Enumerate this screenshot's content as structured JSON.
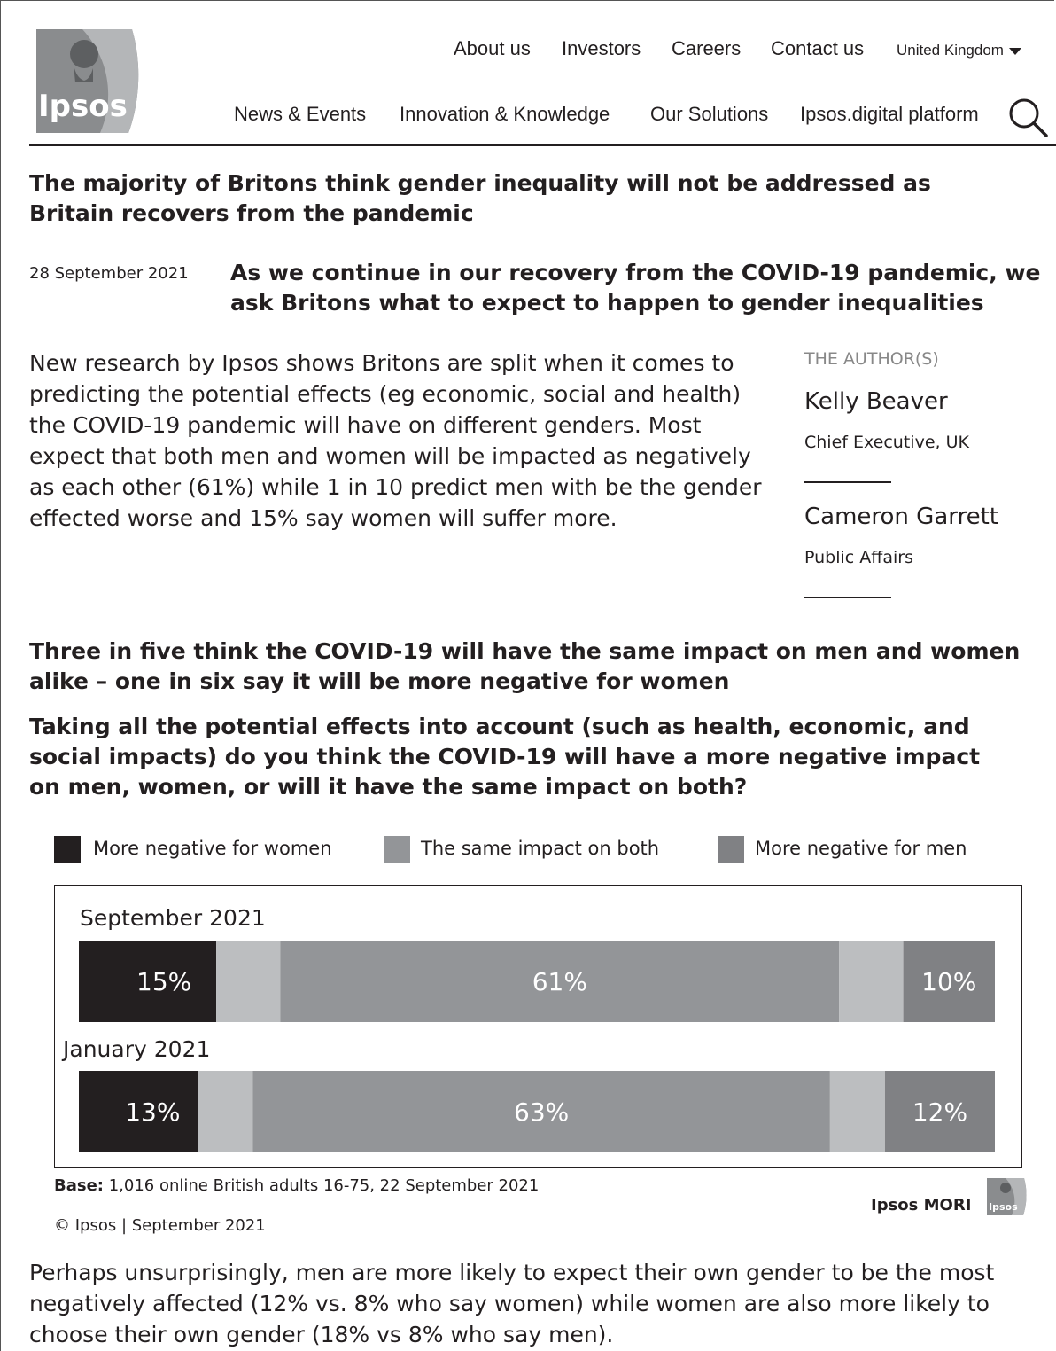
{
  "brand": {
    "logo_text": "Ipsos"
  },
  "topnav": [
    {
      "label": "About us"
    },
    {
      "label": "Investors"
    },
    {
      "label": "Careers"
    },
    {
      "label": "Contact us"
    }
  ],
  "country": "United Kingdom",
  "mainnav": [
    {
      "label": "News & Events"
    },
    {
      "label": "Innovation & Knowledge"
    },
    {
      "label": "Our Solutions"
    },
    {
      "label": "Ipsos.digital platform"
    }
  ],
  "article": {
    "title": "The majority of Britons think gender inequality will not be addressed as Britain recovers from the pandemic",
    "date": "28 September 2021",
    "subtitle": "As we continue in our recovery from the COVID-19 pandemic, we ask Britons what to expect to happen to gender inequalities",
    "intro": "New research by Ipsos shows Britons are split when it comes to predicting the potential effects (eg economic, social and health) the COVID-19 pandemic will have on different genders. Most expect that both men and women will be impacted as negatively as each other (61%) while 1 in 10 predict men with be the gender effected worse and 15% say women will suffer more.",
    "authors_heading": "THE AUTHOR(S)",
    "authors": [
      {
        "name": "Kelly Beaver",
        "role": "Chief Executive, UK"
      },
      {
        "name": "Cameron Garrett",
        "role": "Public Affairs"
      }
    ],
    "chart_heading": "Three in five think the COVID-19 will have the same impact on men and women alike – one in six say it will be more negative for women",
    "question": "Taking all the potential effects into account (such as health, economic, and social impacts) do you think the COVID-19 will have a more negative impact on men, women, or will it have the same impact on both?",
    "base_label": "Base:",
    "base_text": " 1,016 online British adults 16-75, 22 September 2021",
    "copyright": "© Ipsos | September 2021",
    "footer_brand": "Ipsos MORI",
    "conclusion": "Perhaps unsurprisingly, men are more likely to expect their own gender to be the most negatively affected (12% vs. 8% who say women) while women are also more likely to choose their own gender (18% vs 8% who say men)."
  },
  "colors": {
    "women": "#231f20",
    "same": "#939598",
    "men": "#808184",
    "gap": "#bcbec0"
  },
  "chart_data": {
    "type": "bar",
    "orientation": "horizontal",
    "stacked": true,
    "categories": [
      "September 2021",
      "January 2021"
    ],
    "series": [
      {
        "name": "More negative for women",
        "values": [
          15,
          13
        ]
      },
      {
        "name": "The same impact on both",
        "values": [
          61,
          63
        ]
      },
      {
        "name": "More negative for men",
        "values": [
          10,
          12
        ]
      }
    ],
    "data_labels": [
      [
        "15%",
        "61%",
        "10%"
      ],
      [
        "13%",
        "63%",
        "12%"
      ]
    ],
    "legend": "top"
  }
}
